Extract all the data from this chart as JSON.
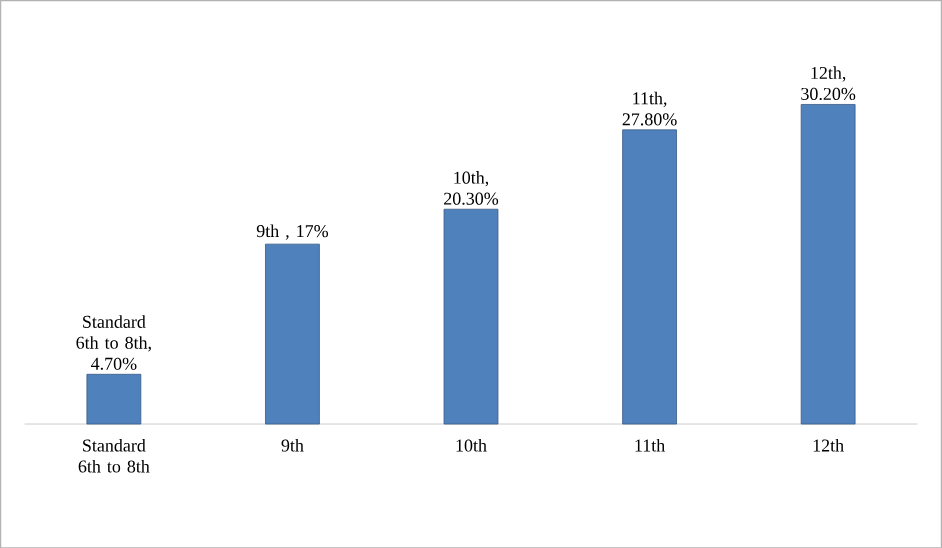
{
  "chart_data": {
    "type": "bar",
    "categories": [
      "Standard 6th to 8th",
      "9th",
      "10th",
      "11th",
      "12th"
    ],
    "values": [
      4.7,
      17,
      20.3,
      27.8,
      30.2
    ],
    "value_labels": [
      "Standard 6th to 8th, 4.70%",
      "9th , 17%",
      "10th, 20.30%",
      "11th, 27.80%",
      "12th, 30.20%"
    ],
    "color": "#4f81bd"
  }
}
